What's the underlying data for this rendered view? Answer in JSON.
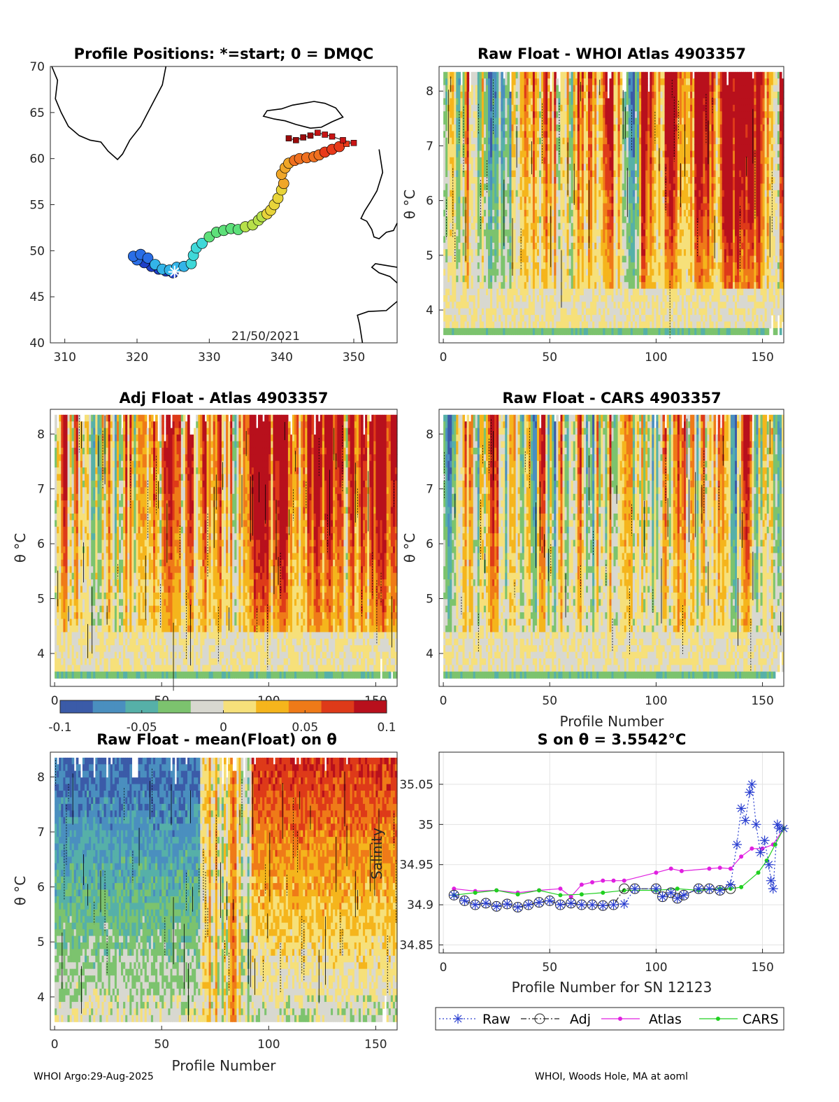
{
  "footer": {
    "left": "WHOI Argo:29-Aug-2025",
    "right": "WHOI, Woods Hole, MA at aoml"
  },
  "colorbar": {
    "ticks": [
      "-0.1",
      "-0.05",
      "0",
      "0.05",
      "0.1"
    ],
    "colors": [
      "#3b5ba8",
      "#4a8fbf",
      "#56b0a8",
      "#7cc36e",
      "#d8d8d0",
      "#f6e07a",
      "#f5b51c",
      "#ef7a18",
      "#de3a19",
      "#b8101c"
    ]
  },
  "chart_data": [
    {
      "id": "map",
      "type": "scatter",
      "title": "Profile Positions: *=start; 0 = DMQC",
      "date_label": "21/50/2021",
      "xlim": [
        308,
        356
      ],
      "ylim": [
        40,
        70
      ],
      "xticks": [
        "310",
        "320",
        "330",
        "340",
        "350"
      ],
      "yticks": [
        "40",
        "45",
        "50",
        "55",
        "60",
        "65",
        "70"
      ],
      "track_lon": [
        325.0,
        324.0,
        323.0,
        322.0,
        321.0,
        320.0,
        319.5,
        320.5,
        321.5,
        322.5,
        323.5,
        324.5,
        325.5,
        326.5,
        327.5,
        327.8,
        328.2,
        329.0,
        330.0,
        331.0,
        332.0,
        333.0,
        334.0,
        335.0,
        336.0,
        336.8,
        337.3,
        338.0,
        338.5,
        339.0,
        339.5,
        340.0,
        340.3,
        340.0,
        340.5,
        341.0,
        341.8,
        342.5,
        343.5,
        344.5,
        345.2,
        346.0,
        347.0,
        348.0,
        349.0,
        350.0,
        348.5,
        347.0,
        346.0,
        345.0,
        344.0,
        343.0,
        342.0,
        341.0
      ],
      "track_lat": [
        47.6,
        47.8,
        48.0,
        48.3,
        48.7,
        49.0,
        49.4,
        49.6,
        49.2,
        48.5,
        48.0,
        47.9,
        48.2,
        48.3,
        48.6,
        49.5,
        50.3,
        50.8,
        51.5,
        52.0,
        52.2,
        52.4,
        52.3,
        52.6,
        52.8,
        53.3,
        53.7,
        54.0,
        54.4,
        55.0,
        55.7,
        56.6,
        57.3,
        58.3,
        59.0,
        59.5,
        59.8,
        60.0,
        60.1,
        60.2,
        60.4,
        60.7,
        61.0,
        61.3,
        61.6,
        61.7,
        62.0,
        62.4,
        62.6,
        62.8,
        62.5,
        62.3,
        62.0,
        62.2
      ],
      "start": [
        325.2,
        47.7
      ]
    },
    {
      "id": "raw_atlas",
      "type": "heatmap",
      "title": "Raw Float - WHOI Atlas  4903357",
      "xlabel": "",
      "ylabel": "θ °C",
      "xlim": [
        -2,
        160
      ],
      "ylim": [
        3.4,
        8.45
      ],
      "xticks": [
        "0",
        "50",
        "100",
        "150"
      ],
      "yticks": [
        "4",
        "5",
        "6",
        "7",
        "8"
      ],
      "seed": 11,
      "bias": 0.18,
      "late_bias": 0.75
    },
    {
      "id": "adj_atlas",
      "type": "heatmap",
      "title": "Adj Float - Atlas  4903357",
      "xlabel": "",
      "ylabel": "θ °C",
      "xlim": [
        -2,
        160
      ],
      "ylim": [
        3.4,
        8.45
      ],
      "xticks": [
        "0",
        "50",
        "100",
        "150"
      ],
      "yticks": [
        "4",
        "5",
        "6",
        "7",
        "8"
      ],
      "seed": 29,
      "bias": 0.15,
      "late_bias": 0.7
    },
    {
      "id": "raw_cars",
      "type": "heatmap",
      "title": "Raw Float - CARS  4903357",
      "xlabel": "Profile Number",
      "ylabel": "θ °C",
      "xlim": [
        -2,
        160
      ],
      "ylim": [
        3.4,
        8.45
      ],
      "xticks": [
        "0",
        "50",
        "100",
        "150"
      ],
      "yticks": [
        "4",
        "5",
        "6",
        "7",
        "8"
      ],
      "seed": 47,
      "bias": 0.0,
      "late_bias": -0.05
    },
    {
      "id": "raw_mean",
      "type": "heatmap",
      "title": "Raw Float - mean(Float) on θ",
      "xlabel": "Profile Number",
      "ylabel": "θ °C",
      "xlim": [
        -2,
        160
      ],
      "ylim": [
        3.4,
        8.45
      ],
      "xticks": [
        "0",
        "50",
        "100",
        "150"
      ],
      "yticks": [
        "4",
        "5",
        "6",
        "7",
        "8"
      ],
      "seed": 83,
      "bias": -0.6,
      "late_bias": 0.9
    },
    {
      "id": "salinity",
      "type": "line",
      "title": "S on θ = 3.5542°C",
      "xlabel": "Profile Number for SN 12123",
      "ylabel": "Salinity",
      "xlim": [
        -2,
        160
      ],
      "ylim": [
        34.84,
        35.09
      ],
      "xticks": [
        "0",
        "50",
        "100",
        "150"
      ],
      "yticks": [
        "34.85",
        "34.9",
        "34.95",
        "35",
        "35.05"
      ],
      "legend": [
        "Raw",
        "Adj",
        "Atlas",
        "CARS"
      ],
      "series": [
        {
          "name": "Raw",
          "color": "#2a3fd0",
          "x": [
            5,
            10,
            15,
            20,
            25,
            30,
            35,
            40,
            45,
            50,
            55,
            60,
            65,
            70,
            75,
            80,
            85,
            90,
            100,
            103,
            107,
            110,
            113,
            120,
            125,
            130,
            135,
            138,
            140,
            142,
            144,
            145,
            147,
            149,
            151,
            153,
            154,
            155,
            157,
            158,
            160
          ],
          "y": [
            34.912,
            34.905,
            34.9,
            34.902,
            34.898,
            34.901,
            34.897,
            34.9,
            34.903,
            34.905,
            34.9,
            34.902,
            34.9,
            34.9,
            34.899,
            34.9,
            34.901,
            34.92,
            34.92,
            34.91,
            34.915,
            34.908,
            34.912,
            34.92,
            34.92,
            34.918,
            34.925,
            34.975,
            35.02,
            35.005,
            35.04,
            35.05,
            35.0,
            34.965,
            34.98,
            34.95,
            34.93,
            34.92,
            35.0,
            34.995,
            34.995
          ]
        },
        {
          "name": "Adj",
          "color": "#222222",
          "x": [
            5,
            10,
            15,
            20,
            25,
            30,
            35,
            40,
            45,
            50,
            55,
            60,
            65,
            70,
            75,
            80,
            85,
            90,
            100,
            103,
            107,
            110,
            113,
            120,
            125,
            130,
            135
          ],
          "y": [
            34.912,
            34.905,
            34.9,
            34.902,
            34.898,
            34.901,
            34.897,
            34.9,
            34.903,
            34.905,
            34.9,
            34.902,
            34.9,
            34.9,
            34.899,
            34.9,
            34.92,
            34.92,
            34.92,
            34.91,
            34.915,
            34.908,
            34.912,
            34.92,
            34.92,
            34.918,
            34.92
          ]
        },
        {
          "name": "Atlas",
          "color": "#e020e0",
          "x": [
            5,
            15,
            25,
            35,
            45,
            55,
            60,
            65,
            70,
            75,
            80,
            85,
            100,
            107,
            112,
            125,
            130,
            135,
            140,
            145,
            150,
            155,
            160
          ],
          "y": [
            34.92,
            34.917,
            34.918,
            34.915,
            34.918,
            34.92,
            34.91,
            34.925,
            34.928,
            34.93,
            34.93,
            34.93,
            34.94,
            34.945,
            34.942,
            34.945,
            34.946,
            34.945,
            34.96,
            34.97,
            34.97,
            34.975,
            34.995
          ]
        },
        {
          "name": "CARS",
          "color": "#20d020",
          "x": [
            5,
            15,
            25,
            35,
            45,
            55,
            65,
            75,
            85,
            100,
            110,
            120,
            130,
            135,
            140,
            148,
            152,
            156,
            160
          ],
          "y": [
            34.912,
            34.915,
            34.918,
            34.913,
            34.918,
            34.912,
            34.913,
            34.915,
            34.918,
            34.918,
            34.92,
            34.918,
            34.92,
            34.92,
            34.922,
            34.94,
            34.955,
            34.975,
            34.995
          ]
        }
      ]
    }
  ]
}
